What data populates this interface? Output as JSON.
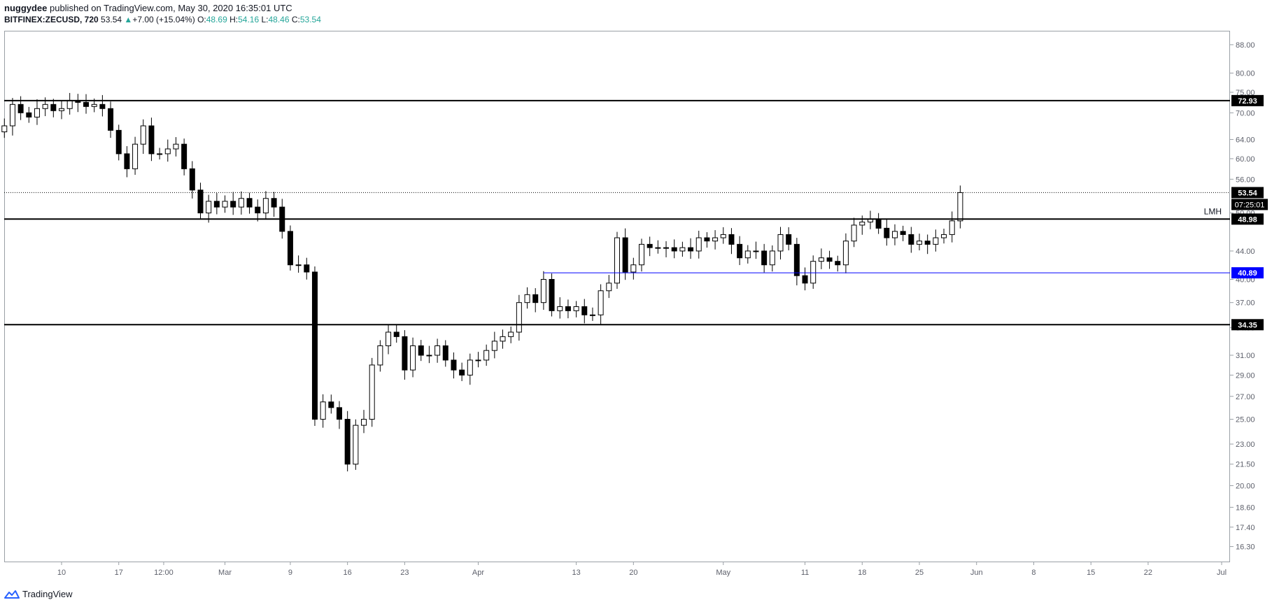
{
  "header": {
    "author": "nuggydee",
    "published_text": "published on TradingView.com, May 30, 2020 16:35:01 UTC",
    "symbol": "BITFINEX:ZECUSD, 720",
    "last": "53.54",
    "change_arrow": "▲",
    "change": "+7.00 (+15.04%)",
    "o_label": "O:",
    "o_value": "48.69",
    "h_label": "H:",
    "h_value": "54.16",
    "l_label": "L:",
    "l_value": "48.46",
    "c_label": "C:",
    "c_value": "53.54"
  },
  "footer": {
    "brand": "TradingView"
  },
  "colors": {
    "line": "#000000",
    "blue_line": "#0000ff",
    "accent": "#26a69a",
    "price_tag": "#000000",
    "blue_tag": "#0000ff"
  },
  "chart_data": {
    "type": "candlestick",
    "x_ticks": [
      "10",
      "17",
      "12:00",
      "Mar",
      "9",
      "16",
      "23",
      "Apr",
      "13",
      "20",
      "May",
      "11",
      "18",
      "25",
      "Jun",
      "8",
      "15",
      "22",
      "Jul"
    ],
    "y_ticks": [
      "88.00",
      "80.00",
      "75.00",
      "70.00",
      "64.00",
      "60.00",
      "56.00",
      "50.00",
      "44.00",
      "40.00",
      "37.00",
      "34.00",
      "31.00",
      "29.00",
      "27.00",
      "25.00",
      "23.00",
      "21.50",
      "20.00",
      "18.60",
      "17.40",
      "16.30"
    ],
    "y_scale": "log",
    "ylim": [
      15.5,
      92
    ],
    "horizontal_lines": [
      {
        "value": 72.93,
        "label": "72.93",
        "color": "#000000"
      },
      {
        "value": 48.98,
        "label": "48.98",
        "color": "#000000",
        "annotation": "LMH"
      },
      {
        "value": 40.89,
        "label": "40.89",
        "color": "#0000ff",
        "start_date": "Apr 9"
      },
      {
        "value": 34.35,
        "label": "34.35",
        "color": "#000000"
      }
    ],
    "last_price": {
      "value": 53.54,
      "label": "53.54",
      "countdown": "07:25:01"
    },
    "series": [
      {
        "date": "Feb 3",
        "close": 67
      },
      {
        "date": "Feb 4",
        "close": 72
      },
      {
        "date": "Feb 5",
        "close": 70
      },
      {
        "date": "Feb 6",
        "close": 69
      },
      {
        "date": "Feb 7",
        "close": 71
      },
      {
        "date": "Feb 8",
        "close": 72
      },
      {
        "date": "Feb 9",
        "close": 70.5
      },
      {
        "date": "Feb 10",
        "close": 71
      },
      {
        "date": "Feb 11",
        "close": 73
      },
      {
        "date": "Feb 12",
        "close": 72.5
      },
      {
        "date": "Feb 13",
        "close": 71.5
      },
      {
        "date": "Feb 14",
        "close": 72
      },
      {
        "date": "Feb 15",
        "close": 71
      },
      {
        "date": "Feb 16",
        "close": 66
      },
      {
        "date": "Feb 17",
        "close": 61
      },
      {
        "date": "Feb 18",
        "close": 58
      },
      {
        "date": "Feb 19",
        "close": 63
      },
      {
        "date": "Feb 20",
        "close": 67
      },
      {
        "date": "Feb 21",
        "close": 61
      },
      {
        "date": "Feb 22",
        "close": 61
      },
      {
        "date": "Feb 23",
        "close": 62
      },
      {
        "date": "Feb 24",
        "close": 63
      },
      {
        "date": "Feb 25",
        "close": 58
      },
      {
        "date": "Feb 26",
        "close": 54
      },
      {
        "date": "Feb 27",
        "close": 50
      },
      {
        "date": "Feb 28",
        "close": 52
      },
      {
        "date": "Feb 29",
        "close": 51
      },
      {
        "date": "Mar 1",
        "close": 52
      },
      {
        "date": "Mar 2",
        "close": 51
      },
      {
        "date": "Mar 3",
        "close": 52.5
      },
      {
        "date": "Mar 4",
        "close": 51
      },
      {
        "date": "Mar 5",
        "close": 50
      },
      {
        "date": "Mar 6",
        "close": 52.5
      },
      {
        "date": "Mar 7",
        "close": 51
      },
      {
        "date": "Mar 8",
        "close": 47
      },
      {
        "date": "Mar 9",
        "close": 42
      },
      {
        "date": "Mar 10",
        "close": 42
      },
      {
        "date": "Mar 11",
        "close": 41
      },
      {
        "date": "Mar 12",
        "close": 25
      },
      {
        "date": "Mar 13",
        "close": 26.5
      },
      {
        "date": "Mar 14",
        "close": 26
      },
      {
        "date": "Mar 15",
        "close": 25
      },
      {
        "date": "Mar 16",
        "close": 21.5
      },
      {
        "date": "Mar 17",
        "close": 24.5
      },
      {
        "date": "Mar 18",
        "close": 25
      },
      {
        "date": "Mar 19",
        "close": 30
      },
      {
        "date": "Mar 20",
        "close": 32
      },
      {
        "date": "Mar 21",
        "close": 33.5
      },
      {
        "date": "Mar 22",
        "close": 33
      },
      {
        "date": "Mar 23",
        "close": 29.5
      },
      {
        "date": "Mar 24",
        "close": 32
      },
      {
        "date": "Mar 25",
        "close": 31
      },
      {
        "date": "Mar 26",
        "close": 31
      },
      {
        "date": "Mar 27",
        "close": 32
      },
      {
        "date": "Mar 28",
        "close": 30.5
      },
      {
        "date": "Mar 29",
        "close": 29.5
      },
      {
        "date": "Mar 30",
        "close": 29
      },
      {
        "date": "Mar 31",
        "close": 30.5
      },
      {
        "date": "Apr 1",
        "close": 30.5
      },
      {
        "date": "Apr 2",
        "close": 31.5
      },
      {
        "date": "Apr 3",
        "close": 32.5
      },
      {
        "date": "Apr 4",
        "close": 33
      },
      {
        "date": "Apr 5",
        "close": 33.5
      },
      {
        "date": "Apr 6",
        "close": 37
      },
      {
        "date": "Apr 7",
        "close": 38
      },
      {
        "date": "Apr 8",
        "close": 37
      },
      {
        "date": "Apr 9",
        "close": 40
      },
      {
        "date": "Apr 10",
        "close": 36
      },
      {
        "date": "Apr 11",
        "close": 36.5
      },
      {
        "date": "Apr 12",
        "close": 36
      },
      {
        "date": "Apr 13",
        "close": 36.5
      },
      {
        "date": "Apr 14",
        "close": 35.5
      },
      {
        "date": "Apr 15",
        "close": 35.5
      },
      {
        "date": "Apr 16",
        "close": 38.5
      },
      {
        "date": "Apr 17",
        "close": 39.5
      },
      {
        "date": "Apr 18",
        "close": 46
      },
      {
        "date": "Apr 19",
        "close": 41
      },
      {
        "date": "Apr 20",
        "close": 42
      },
      {
        "date": "Apr 21",
        "close": 45
      },
      {
        "date": "Apr 22",
        "close": 44.5
      },
      {
        "date": "Apr 23",
        "close": 44.5
      },
      {
        "date": "Apr 24",
        "close": 44.5
      },
      {
        "date": "Apr 25",
        "close": 44
      },
      {
        "date": "Apr 26",
        "close": 44.5
      },
      {
        "date": "Apr 27",
        "close": 44
      },
      {
        "date": "Apr 28",
        "close": 46
      },
      {
        "date": "Apr 29",
        "close": 45.5
      },
      {
        "date": "Apr 30",
        "close": 46
      },
      {
        "date": "May 1",
        "close": 46.5
      },
      {
        "date": "May 2",
        "close": 45
      },
      {
        "date": "May 3",
        "close": 43
      },
      {
        "date": "May 4",
        "close": 44
      },
      {
        "date": "May 5",
        "close": 44
      },
      {
        "date": "May 6",
        "close": 42
      },
      {
        "date": "May 7",
        "close": 44
      },
      {
        "date": "May 8",
        "close": 46.5
      },
      {
        "date": "May 9",
        "close": 45
      },
      {
        "date": "May 10",
        "close": 40.5
      },
      {
        "date": "May 11",
        "close": 39.5
      },
      {
        "date": "May 12",
        "close": 42.5
      },
      {
        "date": "May 13",
        "close": 43
      },
      {
        "date": "May 14",
        "close": 42.5
      },
      {
        "date": "May 15",
        "close": 42
      },
      {
        "date": "May 16",
        "close": 45.5
      },
      {
        "date": "May 17",
        "close": 48
      },
      {
        "date": "May 18",
        "close": 48.5
      },
      {
        "date": "May 19",
        "close": 49
      },
      {
        "date": "May 20",
        "close": 47.5
      },
      {
        "date": "May 21",
        "close": 46
      },
      {
        "date": "May 22",
        "close": 47
      },
      {
        "date": "May 23",
        "close": 46.5
      },
      {
        "date": "May 24",
        "close": 45
      },
      {
        "date": "May 25",
        "close": 45.5
      },
      {
        "date": "May 26",
        "close": 45
      },
      {
        "date": "May 27",
        "close": 46
      },
      {
        "date": "May 28",
        "close": 46.5
      },
      {
        "date": "May 29",
        "close": 48.69
      },
      {
        "date": "May 30",
        "close": 53.54
      }
    ]
  }
}
